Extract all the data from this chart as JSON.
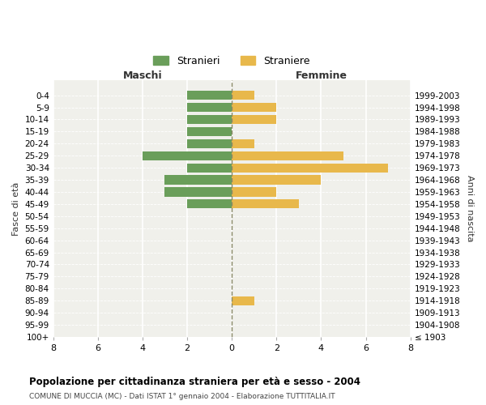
{
  "age_groups": [
    "100+",
    "95-99",
    "90-94",
    "85-89",
    "80-84",
    "75-79",
    "70-74",
    "65-69",
    "60-64",
    "55-59",
    "50-54",
    "45-49",
    "40-44",
    "35-39",
    "30-34",
    "25-29",
    "20-24",
    "15-19",
    "10-14",
    "5-9",
    "0-4"
  ],
  "birth_years": [
    "≤ 1903",
    "1904-1908",
    "1909-1913",
    "1914-1918",
    "1919-1923",
    "1924-1928",
    "1929-1933",
    "1934-1938",
    "1939-1943",
    "1944-1948",
    "1949-1953",
    "1954-1958",
    "1959-1963",
    "1964-1968",
    "1969-1973",
    "1974-1978",
    "1979-1983",
    "1984-1988",
    "1989-1993",
    "1994-1998",
    "1999-2003"
  ],
  "maschi": [
    0,
    0,
    0,
    0,
    0,
    0,
    0,
    0,
    0,
    0,
    0,
    2,
    3,
    3,
    2,
    4,
    2,
    2,
    2,
    2,
    2
  ],
  "femmine": [
    0,
    0,
    0,
    1,
    0,
    0,
    0,
    0,
    0,
    0,
    0,
    3,
    2,
    4,
    7,
    5,
    1,
    0,
    2,
    2,
    1
  ],
  "maschi_color": "#6a9e5a",
  "femmine_color": "#e8b84b",
  "title": "Popolazione per cittadinanza straniera per età e sesso - 2004",
  "subtitle": "COMUNE DI MUCCIA (MC) - Dati ISTAT 1° gennaio 2004 - Elaborazione TUTTITALIA.IT",
  "header_left": "Maschi",
  "header_right": "Femmine",
  "ylabel_left": "Fasce di età",
  "ylabel_right": "Anni di nascita",
  "legend_maschi": "Stranieri",
  "legend_femmine": "Straniere",
  "xlim": 8,
  "background_color": "#ffffff",
  "plot_bg_color": "#f0f0eb"
}
